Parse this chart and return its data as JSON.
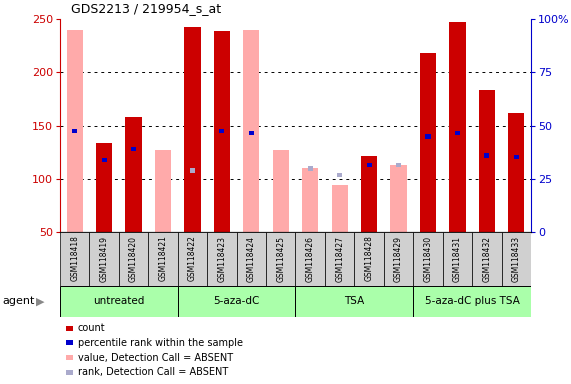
{
  "title": "GDS2213 / 219954_s_at",
  "samples": [
    "GSM118418",
    "GSM118419",
    "GSM118420",
    "GSM118421",
    "GSM118422",
    "GSM118423",
    "GSM118424",
    "GSM118425",
    "GSM118426",
    "GSM118427",
    "GSM118428",
    "GSM118429",
    "GSM118430",
    "GSM118431",
    "GSM118432",
    "GSM118433"
  ],
  "count_present": [
    null,
    134,
    158,
    null,
    243,
    239,
    null,
    null,
    null,
    null,
    122,
    null,
    218,
    247,
    184,
    162
  ],
  "count_absent": [
    240,
    null,
    null,
    127,
    null,
    null,
    240,
    127,
    110,
    94,
    null,
    113,
    null,
    null,
    null,
    null
  ],
  "rank_present": [
    145,
    118,
    128,
    null,
    null,
    145,
    143,
    null,
    null,
    null,
    113,
    null,
    140,
    143,
    122,
    121
  ],
  "rank_absent": [
    null,
    null,
    null,
    null,
    108,
    null,
    null,
    null,
    110,
    104,
    null,
    113,
    null,
    null,
    null,
    null
  ],
  "ylim_left": [
    50,
    250
  ],
  "ylim_right": [
    0,
    100
  ],
  "left_ticks": [
    50,
    100,
    150,
    200,
    250
  ],
  "right_ticks": [
    0,
    25,
    50,
    75,
    100
  ],
  "right_tick_labels": [
    "0",
    "25",
    "50",
    "75",
    "100%"
  ],
  "colors": {
    "count_present": "#cc0000",
    "rank_present": "#0000cc",
    "count_absent": "#ffaaaa",
    "rank_absent": "#aaaacc",
    "left_tick_color": "#cc0000",
    "right_tick_color": "#0000cc"
  },
  "groups": [
    {
      "label": "untreated",
      "start": 0,
      "end": 3
    },
    {
      "label": "5-aza-dC",
      "start": 4,
      "end": 7
    },
    {
      "label": "TSA",
      "start": 8,
      "end": 11
    },
    {
      "label": "5-aza-dC plus TSA",
      "start": 12,
      "end": 15
    }
  ],
  "legend": [
    {
      "label": "count",
      "color": "#cc0000"
    },
    {
      "label": "percentile rank within the sample",
      "color": "#0000cc"
    },
    {
      "label": "value, Detection Call = ABSENT",
      "color": "#ffaaaa"
    },
    {
      "label": "rank, Detection Call = ABSENT",
      "color": "#aaaacc"
    }
  ]
}
